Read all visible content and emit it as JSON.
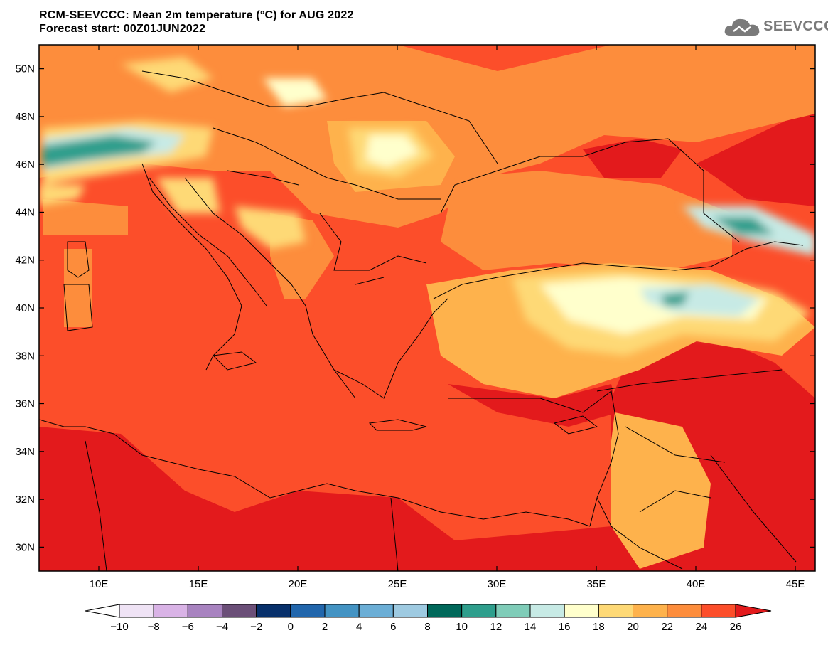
{
  "title": {
    "line1": "RCM-SEEVCCC: Mean 2m temperature (°C) for AUG 2022",
    "line2": "Forecast start: 00Z01JUN2022"
  },
  "logo": {
    "text": "SEEVCCC",
    "icon": "cloud-icon"
  },
  "map": {
    "lat_range": [
      29,
      51
    ],
    "lon_range": [
      7,
      46
    ],
    "lat_ticks": [
      {
        "value": 50,
        "label": "50N"
      },
      {
        "value": 48,
        "label": "48N"
      },
      {
        "value": 46,
        "label": "46N"
      },
      {
        "value": 44,
        "label": "44N"
      },
      {
        "value": 42,
        "label": "42N"
      },
      {
        "value": 40,
        "label": "40N"
      },
      {
        "value": 38,
        "label": "38N"
      },
      {
        "value": 36,
        "label": "36N"
      },
      {
        "value": 34,
        "label": "34N"
      },
      {
        "value": 32,
        "label": "32N"
      },
      {
        "value": 30,
        "label": "30N"
      }
    ],
    "lon_ticks": [
      {
        "value": 10,
        "label": "10E"
      },
      {
        "value": 15,
        "label": "15E"
      },
      {
        "value": 20,
        "label": "20E"
      },
      {
        "value": 25,
        "label": "25E"
      },
      {
        "value": 30,
        "label": "30E"
      },
      {
        "value": 35,
        "label": "35E"
      },
      {
        "value": 40,
        "label": "40E"
      },
      {
        "value": 45,
        "label": "45E"
      }
    ],
    "background_color": "#fc4e2a"
  },
  "colorbar": {
    "labels": [
      "−10",
      "−8",
      "−6",
      "−4",
      "−2",
      "0",
      "2",
      "4",
      "6",
      "8",
      "10",
      "12",
      "14",
      "16",
      "18",
      "20",
      "22",
      "24",
      "26"
    ],
    "under_color": "#ffffff",
    "over_color": "#e31a1c",
    "colors": [
      "#efe3f5",
      "#d9b3e6",
      "#a883c0",
      "#6b4f78",
      "#08306b",
      "#2166ac",
      "#4393c3",
      "#6baed6",
      "#9ecae1",
      "#00685a",
      "#2e9e8c",
      "#7fccb8",
      "#c7eae5",
      "#ffffcc",
      "#fed976",
      "#feb24c",
      "#fd8d3c",
      "#fc4e2a"
    ]
  }
}
